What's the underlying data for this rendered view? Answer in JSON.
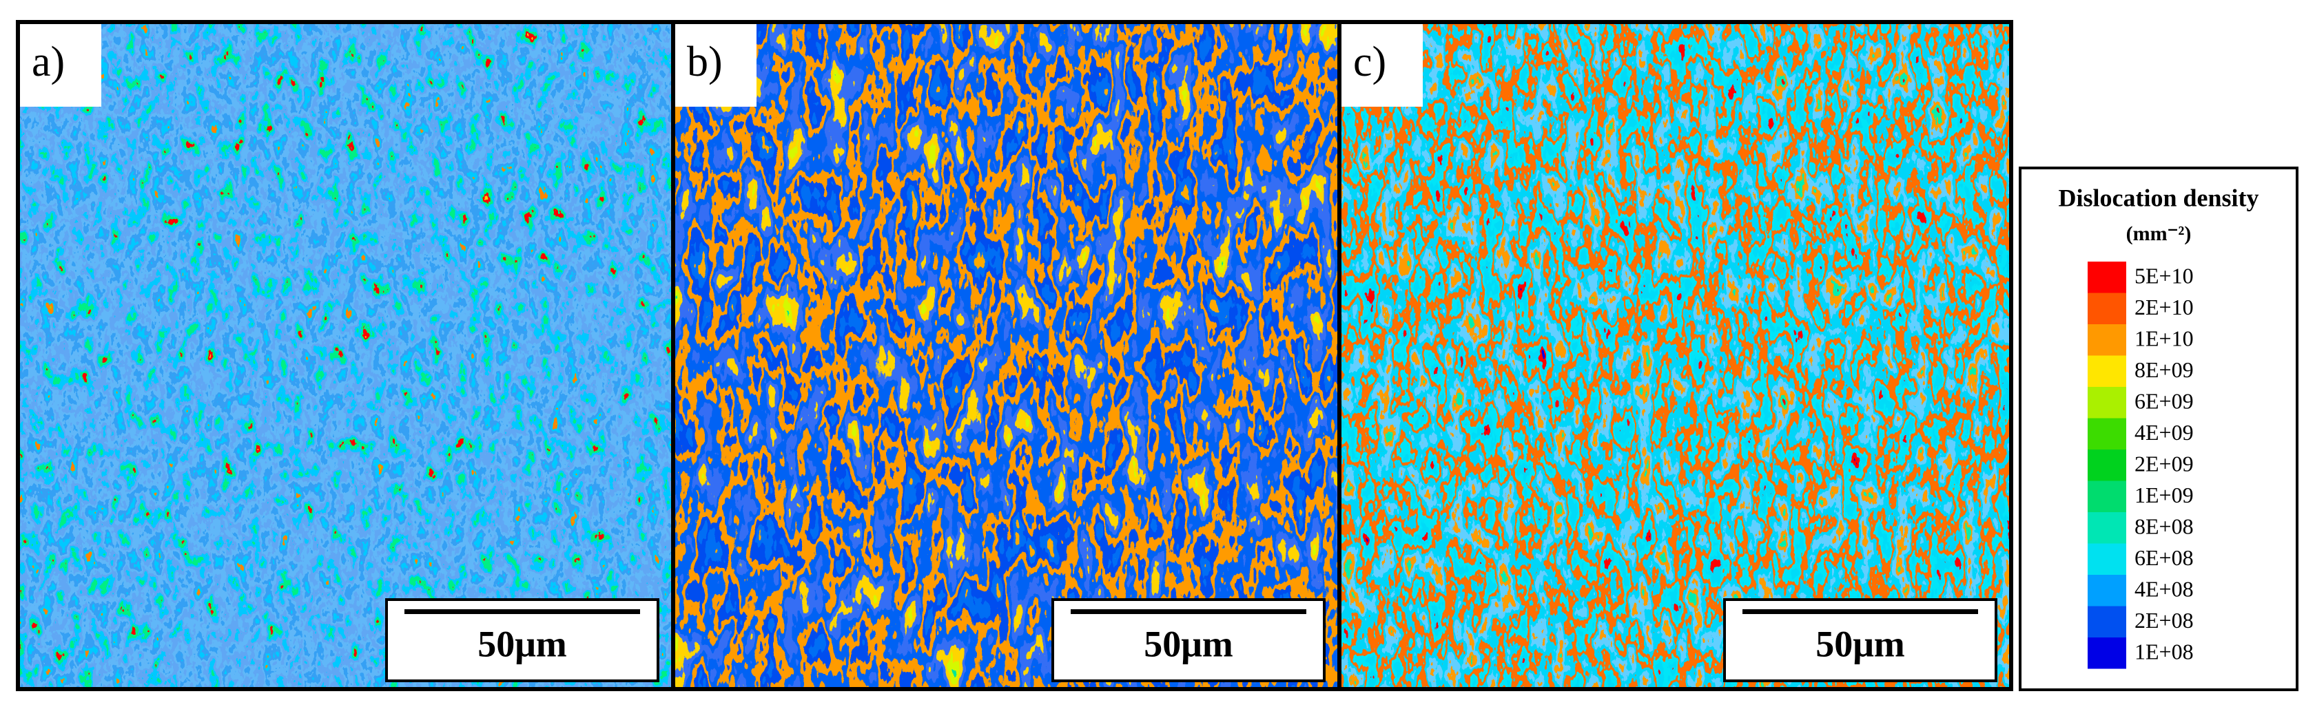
{
  "panels": [
    {
      "label": "a)",
      "scale_bar": "50μm"
    },
    {
      "label": "b)",
      "scale_bar": "50μm"
    },
    {
      "label": "c)",
      "scale_bar": "50μm"
    }
  ],
  "legend": {
    "title": "Dislocation density",
    "unit": "(mm⁻²)",
    "items": [
      {
        "label": "5E+10",
        "color": "#ff0000"
      },
      {
        "label": "2E+10",
        "color": "#ff5500"
      },
      {
        "label": "1E+10",
        "color": "#ff9900"
      },
      {
        "label": "8E+09",
        "color": "#ffe600"
      },
      {
        "label": "6E+09",
        "color": "#aaf000"
      },
      {
        "label": "4E+09",
        "color": "#3cdc00"
      },
      {
        "label": "2E+09",
        "color": "#00d21e"
      },
      {
        "label": "1E+09",
        "color": "#00dc6e"
      },
      {
        "label": "8E+08",
        "color": "#00e6b4"
      },
      {
        "label": "6E+08",
        "color": "#00e1f0"
      },
      {
        "label": "4E+08",
        "color": "#00a0ff"
      },
      {
        "label": "2E+08",
        "color": "#0050f0"
      },
      {
        "label": "1E+08",
        "color": "#0000e6"
      }
    ]
  }
}
